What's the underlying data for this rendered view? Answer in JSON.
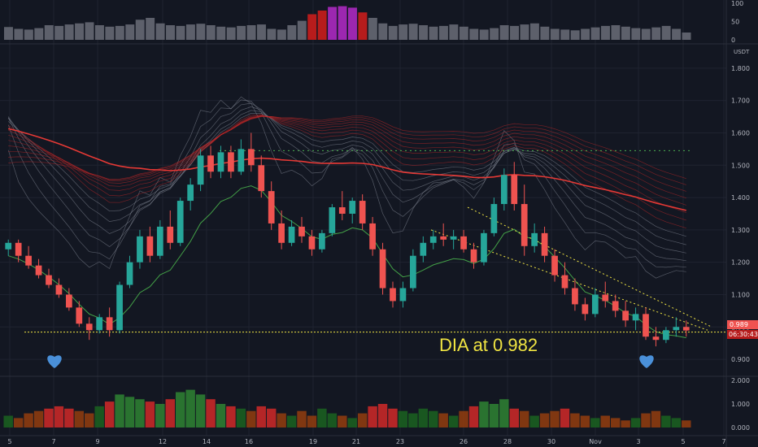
{
  "chart_data": {
    "type": "candlestick",
    "currency": "USDT",
    "annotation": "DIA at 0.982",
    "last_price": "0.989",
    "countdown": "06:30:43",
    "price_axis": {
      "ticks": [
        "1.800",
        "1.700",
        "1.600",
        "1.500",
        "1.400",
        "1.300",
        "1.200",
        "1.100",
        "1.000",
        "0.900"
      ],
      "ylim": [
        0.86,
        1.86
      ]
    },
    "top_axis": {
      "ticks": [
        "100",
        "50",
        "0"
      ]
    },
    "volume_axis": {
      "ticks": [
        "2.000",
        "1.000",
        "0.000"
      ]
    },
    "x_ticks": [
      "5",
      "7",
      "9",
      "12",
      "14",
      "16",
      "19",
      "21",
      "23",
      "26",
      "28",
      "30",
      "Nov",
      "3",
      "5",
      "7"
    ],
    "support_level": 0.989,
    "resistance_level": 1.545,
    "candles": [
      [
        1.24,
        1.27,
        1.22,
        1.26
      ],
      [
        1.26,
        1.27,
        1.2,
        1.22
      ],
      [
        1.22,
        1.25,
        1.18,
        1.19
      ],
      [
        1.19,
        1.21,
        1.15,
        1.16
      ],
      [
        1.16,
        1.18,
        1.12,
        1.13
      ],
      [
        1.13,
        1.15,
        1.09,
        1.1
      ],
      [
        1.1,
        1.12,
        1.05,
        1.06
      ],
      [
        1.06,
        1.08,
        1.0,
        1.01
      ],
      [
        1.01,
        1.03,
        0.96,
        0.99
      ],
      [
        0.99,
        1.04,
        0.98,
        1.03
      ],
      [
        1.03,
        1.06,
        0.97,
        0.99
      ],
      [
        0.99,
        1.14,
        0.98,
        1.13
      ],
      [
        1.13,
        1.22,
        1.12,
        1.2
      ],
      [
        1.2,
        1.3,
        1.18,
        1.28
      ],
      [
        1.28,
        1.31,
        1.2,
        1.22
      ],
      [
        1.22,
        1.33,
        1.21,
        1.31
      ],
      [
        1.31,
        1.36,
        1.24,
        1.26
      ],
      [
        1.26,
        1.4,
        1.25,
        1.39
      ],
      [
        1.39,
        1.46,
        1.36,
        1.44
      ],
      [
        1.44,
        1.55,
        1.42,
        1.53
      ],
      [
        1.53,
        1.56,
        1.46,
        1.48
      ],
      [
        1.48,
        1.56,
        1.46,
        1.54
      ],
      [
        1.54,
        1.56,
        1.46,
        1.48
      ],
      [
        1.48,
        1.58,
        1.47,
        1.55
      ],
      [
        1.55,
        1.6,
        1.48,
        1.5
      ],
      [
        1.5,
        1.53,
        1.4,
        1.42
      ],
      [
        1.42,
        1.45,
        1.3,
        1.32
      ],
      [
        1.32,
        1.36,
        1.24,
        1.26
      ],
      [
        1.26,
        1.33,
        1.25,
        1.31
      ],
      [
        1.31,
        1.34,
        1.26,
        1.28
      ],
      [
        1.28,
        1.3,
        1.22,
        1.24
      ],
      [
        1.24,
        1.3,
        1.23,
        1.29
      ],
      [
        1.29,
        1.38,
        1.28,
        1.37
      ],
      [
        1.37,
        1.42,
        1.33,
        1.35
      ],
      [
        1.35,
        1.4,
        1.32,
        1.39
      ],
      [
        1.39,
        1.41,
        1.3,
        1.32
      ],
      [
        1.32,
        1.34,
        1.22,
        1.24
      ],
      [
        1.24,
        1.26,
        1.1,
        1.12
      ],
      [
        1.12,
        1.14,
        1.06,
        1.08
      ],
      [
        1.08,
        1.14,
        1.06,
        1.12
      ],
      [
        1.12,
        1.24,
        1.11,
        1.22
      ],
      [
        1.22,
        1.28,
        1.2,
        1.26
      ],
      [
        1.26,
        1.3,
        1.24,
        1.28
      ],
      [
        1.28,
        1.32,
        1.25,
        1.27
      ],
      [
        1.27,
        1.3,
        1.24,
        1.28
      ],
      [
        1.28,
        1.3,
        1.23,
        1.24
      ],
      [
        1.24,
        1.26,
        1.18,
        1.2
      ],
      [
        1.2,
        1.3,
        1.19,
        1.29
      ],
      [
        1.29,
        1.4,
        1.28,
        1.38
      ],
      [
        1.38,
        1.49,
        1.36,
        1.47
      ],
      [
        1.47,
        1.51,
        1.36,
        1.38
      ],
      [
        1.38,
        1.44,
        1.22,
        1.25
      ],
      [
        1.25,
        1.32,
        1.23,
        1.29
      ],
      [
        1.29,
        1.31,
        1.2,
        1.22
      ],
      [
        1.22,
        1.24,
        1.14,
        1.16
      ],
      [
        1.16,
        1.2,
        1.1,
        1.12
      ],
      [
        1.12,
        1.15,
        1.05,
        1.07
      ],
      [
        1.07,
        1.09,
        1.02,
        1.04
      ],
      [
        1.04,
        1.12,
        1.03,
        1.1
      ],
      [
        1.1,
        1.14,
        1.06,
        1.08
      ],
      [
        1.08,
        1.1,
        1.03,
        1.05
      ],
      [
        1.05,
        1.08,
        1.0,
        1.02
      ],
      [
        1.02,
        1.06,
        0.99,
        1.04
      ],
      [
        1.04,
        1.06,
        0.96,
        0.97
      ],
      [
        0.97,
        1.0,
        0.94,
        0.96
      ],
      [
        0.96,
        1.0,
        0.95,
        0.99
      ],
      [
        0.99,
        1.03,
        0.97,
        1.0
      ],
      [
        1.0,
        1.02,
        0.97,
        0.989
      ]
    ],
    "volume": [
      0.5,
      0.4,
      0.6,
      0.7,
      0.8,
      0.9,
      0.8,
      0.7,
      0.6,
      0.9,
      1.1,
      1.4,
      1.3,
      1.2,
      1.1,
      1.0,
      1.2,
      1.5,
      1.6,
      1.4,
      1.2,
      1.0,
      0.9,
      0.8,
      0.7,
      0.9,
      0.8,
      0.6,
      0.5,
      0.7,
      0.5,
      0.8,
      0.6,
      0.5,
      0.4,
      0.6,
      0.9,
      1.0,
      0.8,
      0.7,
      0.6,
      0.8,
      0.7,
      0.6,
      0.5,
      0.7,
      0.9,
      1.1,
      1.0,
      1.2,
      0.8,
      0.7,
      0.5,
      0.6,
      0.7,
      0.8,
      0.6,
      0.5,
      0.4,
      0.5,
      0.4,
      0.3,
      0.4,
      0.6,
      0.7,
      0.5,
      0.4,
      0.3
    ],
    "oscillator": [
      35,
      30,
      28,
      32,
      40,
      38,
      42,
      45,
      48,
      40,
      36,
      38,
      42,
      55,
      60,
      45,
      40,
      38,
      42,
      44,
      40,
      36,
      34,
      38,
      40,
      42,
      30,
      28,
      40,
      52,
      70,
      80,
      90,
      92,
      88,
      75,
      60,
      45,
      38,
      42,
      44,
      40,
      36,
      38,
      42,
      36,
      30,
      28,
      32,
      40,
      38,
      42,
      45,
      36,
      30,
      28,
      26,
      30,
      34,
      38,
      40,
      36,
      32,
      30,
      34,
      38,
      30,
      20
    ],
    "colors": {
      "up": "#26a69a",
      "down": "#ef5350",
      "support": "#f0e442",
      "resistance": "#4caf50",
      "ribbon": "#c62828"
    }
  }
}
